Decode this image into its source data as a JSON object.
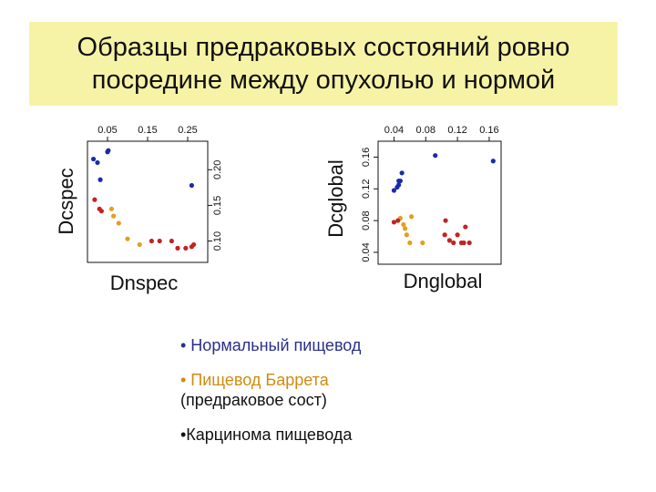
{
  "title": {
    "line1": "Образцы предраковых состояний ровно",
    "line2": "посредине между опухолью и нормой"
  },
  "colors": {
    "normal": "#1a2ba8",
    "barrett": "#e0a020",
    "carcinoma": "#c42222"
  },
  "legend": {
    "normal": "• Нормальный пищевод",
    "barrett_line1": "• Пищевод Баррета",
    "barrett_line2": "(предраковое сост)",
    "carcinoma": "•Карцинома пищевода"
  },
  "chart_data": [
    {
      "type": "scatter",
      "xlabel": "Dnspec",
      "ylabel": "Dcspec",
      "x_ticks": [
        "0.05",
        "0.15",
        "0.25"
      ],
      "y_ticks": [
        "0.10",
        "0.15",
        "0.20"
      ],
      "xlim": [
        0.0,
        0.3
      ],
      "ylim": [
        0.07,
        0.24
      ],
      "x_tick_values": [
        0.05,
        0.15,
        0.25
      ],
      "y_tick_values": [
        0.1,
        0.15,
        0.2
      ],
      "x_axis_side": "top",
      "y_axis_side": "right",
      "series": [
        {
          "group": "normal",
          "x": [
            0.015,
            0.025,
            0.05,
            0.052,
            0.032,
            0.26
          ],
          "y": [
            0.215,
            0.21,
            0.225,
            0.227,
            0.186,
            0.178
          ]
        },
        {
          "group": "barrett",
          "x": [
            0.065,
            0.078,
            0.1,
            0.13,
            0.06
          ],
          "y": [
            0.135,
            0.125,
            0.103,
            0.095,
            0.145
          ]
        },
        {
          "group": "carcinoma",
          "x": [
            0.018,
            0.03,
            0.035,
            0.16,
            0.18,
            0.21,
            0.225,
            0.245,
            0.26,
            0.265
          ],
          "y": [
            0.158,
            0.145,
            0.142,
            0.1,
            0.1,
            0.1,
            0.09,
            0.09,
            0.092,
            0.095
          ]
        }
      ]
    },
    {
      "type": "scatter",
      "xlabel": "Dnglobal",
      "ylabel": "Dcglobal",
      "x_ticks": [
        "0.04",
        "0.08",
        "0.12",
        "0.16"
      ],
      "y_ticks": [
        "0.04",
        "0.08",
        "0.12",
        "0.16"
      ],
      "xlim": [
        0.02,
        0.175
      ],
      "ylim": [
        0.025,
        0.18
      ],
      "x_tick_values": [
        0.04,
        0.08,
        0.12,
        0.16
      ],
      "y_tick_values": [
        0.04,
        0.08,
        0.12,
        0.16
      ],
      "x_axis_side": "top",
      "y_axis_side": "left",
      "series": [
        {
          "group": "normal",
          "x": [
            0.04,
            0.044,
            0.046,
            0.048,
            0.046,
            0.05,
            0.092,
            0.165
          ],
          "y": [
            0.118,
            0.122,
            0.125,
            0.13,
            0.13,
            0.14,
            0.162,
            0.155
          ]
        },
        {
          "group": "barrett",
          "x": [
            0.048,
            0.052,
            0.054,
            0.056,
            0.06,
            0.076,
            0.062
          ],
          "y": [
            0.083,
            0.075,
            0.07,
            0.062,
            0.052,
            0.052,
            0.085
          ]
        },
        {
          "group": "carcinoma",
          "x": [
            0.04,
            0.045,
            0.104,
            0.105,
            0.11,
            0.115,
            0.12,
            0.125,
            0.128,
            0.135,
            0.13
          ],
          "y": [
            0.078,
            0.08,
            0.062,
            0.08,
            0.055,
            0.052,
            0.062,
            0.052,
            0.052,
            0.052,
            0.072
          ]
        }
      ]
    }
  ]
}
